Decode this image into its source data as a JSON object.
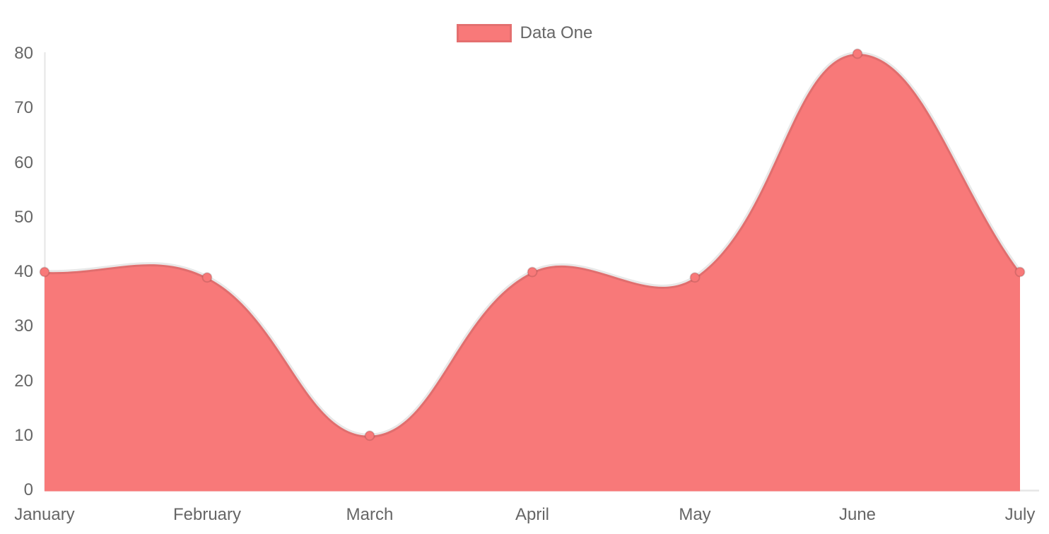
{
  "legend": {
    "items": [
      {
        "label": "Data One",
        "color": "#f87979"
      }
    ]
  },
  "chart_data": {
    "type": "area",
    "title": "",
    "xlabel": "",
    "ylabel": "",
    "categories": [
      "January",
      "February",
      "March",
      "April",
      "May",
      "June",
      "July"
    ],
    "series": [
      {
        "name": "Data One",
        "values": [
          40,
          39,
          10,
          40,
          39,
          80,
          40
        ]
      }
    ],
    "ylim": [
      0,
      80
    ],
    "y_ticks": [
      "80",
      "70",
      "60",
      "50",
      "40",
      "30",
      "20",
      "10",
      "0"
    ],
    "y_tick_values": [
      80,
      70,
      60,
      50,
      40,
      30,
      20,
      10,
      0
    ],
    "grid": "off",
    "legend_position": "top-center",
    "curve": "cubic-bezier-tension-0.4",
    "colors": {
      "area_fill": "#f87979",
      "point_fill": "#f87979",
      "line_stroke": "rgba(0,0,0,0.09)",
      "point_stroke": "rgba(0,0,0,0.12)",
      "axis_line": "#e6e6e6",
      "tick_text": "#666666"
    }
  }
}
